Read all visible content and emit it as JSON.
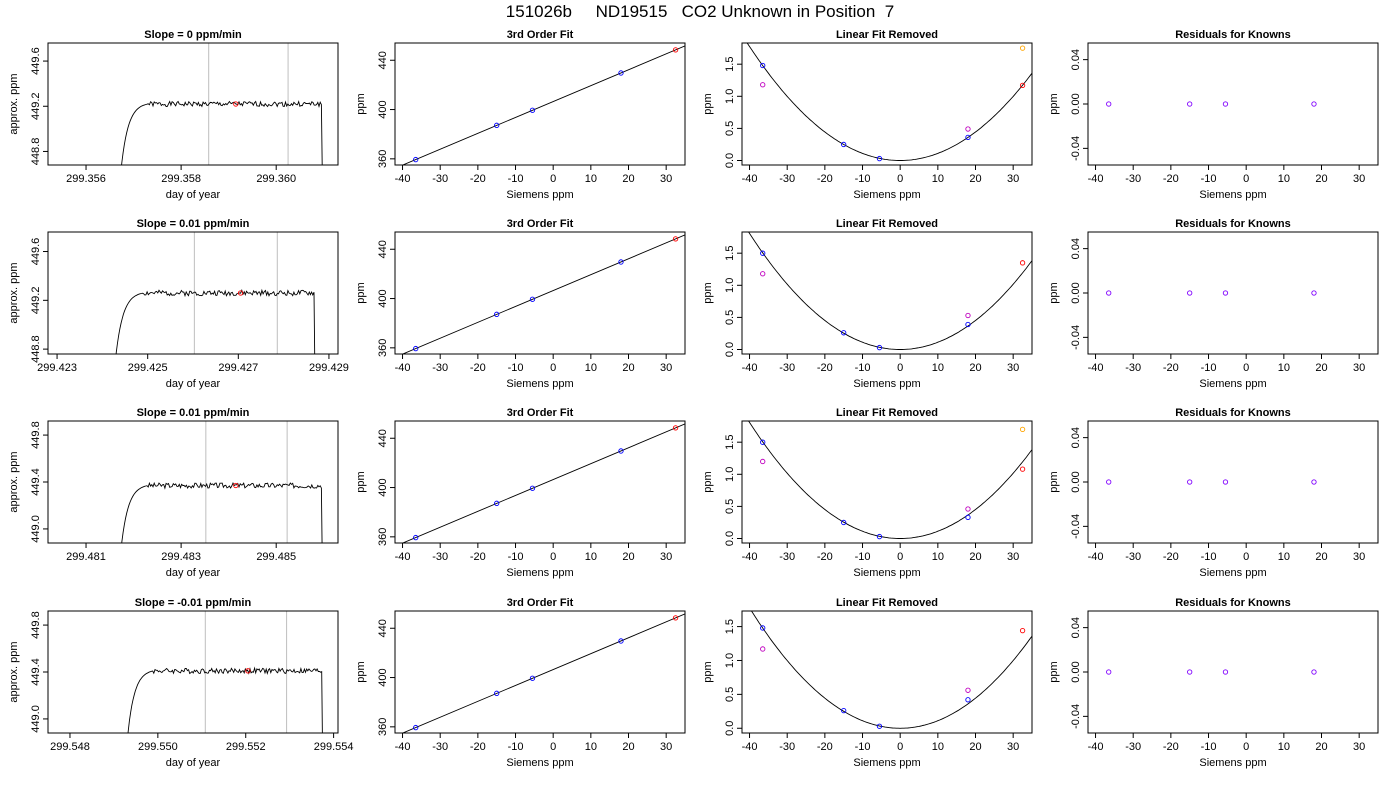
{
  "title": "151026b     ND19515   CO2 Unknown in Position  7",
  "colors": {
    "trace": "#000000",
    "guide_line": "#bebebe",
    "unknown_point": "#ff0000",
    "known_point": "#0000ff",
    "alt_point": "#c000c0",
    "highlight_point": "#ffa500",
    "residual_point": "#8000ff"
  },
  "chart_data": [
    {
      "type": "line",
      "panel": "time-series",
      "row": 1,
      "title": "Slope =  0  ppm/min",
      "xlabel": "day of year",
      "ylabel": "approx. ppm",
      "xlim": [
        299.3552,
        299.3613
      ],
      "ylim": [
        448.68,
        449.76
      ],
      "xticks": [
        299.356,
        299.358,
        299.36
      ],
      "xtick_labels": [
        "299.356",
        "299.358",
        "299.360"
      ],
      "yticks": [
        448.8,
        449.2,
        449.6
      ],
      "ytick_labels": [
        "448.8",
        "449.2",
        "449.6"
      ],
      "trace": {
        "x_start": 299.35668,
        "ramp_end": 299.3573,
        "plateau": 449.22,
        "x_end": 299.36095,
        "drop_to": 448.6,
        "seed": 1
      },
      "guides": [
        299.35858,
        299.36025
      ],
      "marker": {
        "x": 299.35915,
        "y": 449.22
      }
    },
    {
      "type": "line",
      "panel": "fit",
      "row": 1,
      "title": "3rd Order Fit",
      "xlabel": "Siemens ppm",
      "ylabel": "ppm",
      "xlim": [
        -42,
        35
      ],
      "ylim": [
        355,
        454
      ],
      "xticks": [
        -40,
        -30,
        -20,
        -10,
        0,
        10,
        20,
        30
      ],
      "xtick_labels": [
        "-40",
        "-30",
        "-20",
        "-10",
        "0",
        "10",
        "20",
        "30"
      ],
      "yticks": [
        360,
        400,
        440
      ],
      "ytick_labels": [
        "360",
        "400",
        "440"
      ],
      "line": {
        "slope": 1.29,
        "intercept": 406.5
      },
      "known_points": [
        [
          -36.5,
          359.4
        ],
        [
          -15.0,
          387.2
        ],
        [
          -5.5,
          399.4
        ],
        [
          18.0,
          429.7
        ]
      ],
      "unknown_point": [
        32.5,
        448.4
      ]
    },
    {
      "type": "scatter",
      "panel": "linear-fit-removed",
      "row": 1,
      "title": "Linear Fit Removed",
      "xlabel": "Siemens ppm",
      "ylabel": "ppm",
      "xlim": [
        -42,
        35
      ],
      "ylim": [
        -0.07,
        1.83
      ],
      "xticks": [
        -40,
        -30,
        -20,
        -10,
        0,
        10,
        20,
        30
      ],
      "xtick_labels": [
        "-40",
        "-30",
        "-20",
        "-10",
        "0",
        "10",
        "20",
        "30"
      ],
      "yticks": [
        0,
        0.5,
        1,
        1.5
      ],
      "ytick_labels": [
        "0.0",
        "0.5",
        "1.0",
        "1.5"
      ],
      "curve_coef": 0.00111,
      "known_points": [
        [
          -36.5,
          1.48
        ],
        [
          -15.0,
          0.25
        ],
        [
          -5.5,
          0.03
        ],
        [
          18.0,
          0.36
        ]
      ],
      "alt_points": [
        [
          -36.5,
          1.18
        ],
        [
          18.0,
          0.49
        ]
      ],
      "unknown_point": [
        32.5,
        1.17
      ],
      "highlight_point": [
        32.5,
        1.75
      ]
    },
    {
      "type": "scatter",
      "panel": "residuals",
      "row": 1,
      "title": "Residuals for Knowns",
      "xlabel": "Siemens ppm",
      "ylabel": "ppm",
      "xlim": [
        -42,
        35
      ],
      "ylim": [
        -0.055,
        0.055
      ],
      "xticks": [
        -40,
        -30,
        -20,
        -10,
        0,
        10,
        20,
        30
      ],
      "xtick_labels": [
        "-40",
        "-30",
        "-20",
        "-10",
        "0",
        "10",
        "20",
        "30"
      ],
      "yticks": [
        -0.04,
        0,
        0.04
      ],
      "ytick_labels": [
        "-0.04",
        "0.00",
        "0.04"
      ],
      "points": [
        [
          -36.5,
          0
        ],
        [
          -15.0,
          0
        ],
        [
          -5.5,
          0
        ],
        [
          18.0,
          0
        ]
      ]
    },
    {
      "type": "line",
      "panel": "time-series",
      "row": 2,
      "title": "Slope =  0.01  ppm/min",
      "xlabel": "day of year",
      "ylabel": "approx. ppm",
      "xlim": [
        299.4228,
        299.4292
      ],
      "ylim": [
        448.76,
        449.76
      ],
      "xticks": [
        299.423,
        299.425,
        299.427,
        299.429
      ],
      "xtick_labels": [
        "299.423",
        "299.425",
        "299.427",
        "299.429"
      ],
      "yticks": [
        448.8,
        449.2,
        449.6
      ],
      "ytick_labels": [
        "448.8",
        "449.2",
        "449.6"
      ],
      "trace": {
        "x_start": 299.42423,
        "ramp_end": 299.4249,
        "plateau": 449.26,
        "x_end": 299.42867,
        "drop_to": 448.6,
        "seed": 2
      },
      "guides": [
        299.42603,
        299.42786
      ],
      "marker": {
        "x": 299.42705,
        "y": 449.26
      }
    },
    {
      "type": "line",
      "panel": "fit",
      "row": 2,
      "title": "3rd Order Fit",
      "xlabel": "Siemens ppm",
      "ylabel": "ppm",
      "xlim": [
        -42,
        35
      ],
      "ylim": [
        355,
        454
      ],
      "xticks": [
        -40,
        -30,
        -20,
        -10,
        0,
        10,
        20,
        30
      ],
      "xtick_labels": [
        "-40",
        "-30",
        "-20",
        "-10",
        "0",
        "10",
        "20",
        "30"
      ],
      "yticks": [
        360,
        400,
        440
      ],
      "ytick_labels": [
        "360",
        "400",
        "440"
      ],
      "line": {
        "slope": 1.29,
        "intercept": 406.5
      },
      "known_points": [
        [
          -36.5,
          359.4
        ],
        [
          -15.0,
          387.2
        ],
        [
          -5.5,
          399.4
        ],
        [
          18.0,
          429.7
        ]
      ],
      "unknown_point": [
        32.5,
        448.4
      ]
    },
    {
      "type": "scatter",
      "panel": "linear-fit-removed",
      "row": 2,
      "title": "Linear Fit Removed",
      "xlabel": "Siemens ppm",
      "ylabel": "ppm",
      "xlim": [
        -42,
        35
      ],
      "ylim": [
        -0.07,
        1.83
      ],
      "xticks": [
        -40,
        -30,
        -20,
        -10,
        0,
        10,
        20,
        30
      ],
      "xtick_labels": [
        "-40",
        "-30",
        "-20",
        "-10",
        "0",
        "10",
        "20",
        "30"
      ],
      "yticks": [
        0,
        0.5,
        1,
        1.5
      ],
      "ytick_labels": [
        "0.0",
        "0.5",
        "1.0",
        "1.5"
      ],
      "curve_coef": 0.00113,
      "known_points": [
        [
          -36.5,
          1.5
        ],
        [
          -15.0,
          0.26
        ],
        [
          -5.5,
          0.03
        ],
        [
          18.0,
          0.39
        ]
      ],
      "alt_points": [
        [
          -36.5,
          1.18
        ],
        [
          18.0,
          0.53
        ]
      ],
      "unknown_point": [
        32.5,
        1.35
      ],
      "highlight_point": null
    },
    {
      "type": "scatter",
      "panel": "residuals",
      "row": 2,
      "title": "Residuals for Knowns",
      "xlabel": "Siemens ppm",
      "ylabel": "ppm",
      "xlim": [
        -42,
        35
      ],
      "ylim": [
        -0.055,
        0.055
      ],
      "xticks": [
        -40,
        -30,
        -20,
        -10,
        0,
        10,
        20,
        30
      ],
      "xtick_labels": [
        "-40",
        "-30",
        "-20",
        "-10",
        "0",
        "10",
        "20",
        "30"
      ],
      "yticks": [
        -0.04,
        0,
        0.04
      ],
      "ytick_labels": [
        "-0.04",
        "0.00",
        "0.04"
      ],
      "points": [
        [
          -36.5,
          0
        ],
        [
          -15.0,
          0
        ],
        [
          -5.5,
          0
        ],
        [
          18.0,
          0
        ]
      ]
    },
    {
      "type": "line",
      "panel": "time-series",
      "row": 3,
      "title": "Slope =  0.01  ppm/min",
      "xlabel": "day of year",
      "ylabel": "approx. ppm",
      "xlim": [
        299.4802,
        299.4863
      ],
      "ylim": [
        448.88,
        449.92
      ],
      "xticks": [
        299.481,
        299.483,
        299.485
      ],
      "xtick_labels": [
        "299.481",
        "299.483",
        "299.485"
      ],
      "yticks": [
        449.0,
        449.4,
        449.8
      ],
      "ytick_labels": [
        "449.0",
        "449.4",
        "449.8"
      ],
      "trace": {
        "x_start": 299.48168,
        "ramp_end": 299.4823,
        "plateau": 449.37,
        "x_end": 299.48595,
        "drop_to": 448.7,
        "seed": 3
      },
      "guides": [
        299.48352,
        299.48523
      ],
      "marker": {
        "x": 299.48415,
        "y": 449.37
      }
    },
    {
      "type": "line",
      "panel": "fit",
      "row": 3,
      "title": "3rd Order Fit",
      "xlabel": "Siemens ppm",
      "ylabel": "ppm",
      "xlim": [
        -42,
        35
      ],
      "ylim": [
        355,
        454
      ],
      "xticks": [
        -40,
        -30,
        -20,
        -10,
        0,
        10,
        20,
        30
      ],
      "xtick_labels": [
        "-40",
        "-30",
        "-20",
        "-10",
        "0",
        "10",
        "20",
        "30"
      ],
      "yticks": [
        360,
        400,
        440
      ],
      "ytick_labels": [
        "360",
        "400",
        "440"
      ],
      "line": {
        "slope": 1.29,
        "intercept": 406.5
      },
      "known_points": [
        [
          -36.5,
          359.4
        ],
        [
          -15.0,
          387.2
        ],
        [
          -5.5,
          399.4
        ],
        [
          18.0,
          429.7
        ]
      ],
      "unknown_point": [
        32.5,
        448.4
      ]
    },
    {
      "type": "scatter",
      "panel": "linear-fit-removed",
      "row": 3,
      "title": "Linear Fit Removed",
      "xlabel": "Siemens ppm",
      "ylabel": "ppm",
      "xlim": [
        -42,
        35
      ],
      "ylim": [
        -0.07,
        1.83
      ],
      "xticks": [
        -40,
        -30,
        -20,
        -10,
        0,
        10,
        20,
        30
      ],
      "xtick_labels": [
        "-40",
        "-30",
        "-20",
        "-10",
        "0",
        "10",
        "20",
        "30"
      ],
      "yticks": [
        0,
        0.5,
        1,
        1.5
      ],
      "ytick_labels": [
        "0.0",
        "0.5",
        "1.0",
        "1.5"
      ],
      "curve_coef": 0.00113,
      "known_points": [
        [
          -36.5,
          1.5
        ],
        [
          -15.0,
          0.25
        ],
        [
          -5.5,
          0.03
        ],
        [
          18.0,
          0.33
        ]
      ],
      "alt_points": [
        [
          -36.5,
          1.2
        ],
        [
          18.0,
          0.46
        ]
      ],
      "unknown_point": [
        32.5,
        1.08
      ],
      "highlight_point": [
        32.5,
        1.7
      ]
    },
    {
      "type": "scatter",
      "panel": "residuals",
      "row": 3,
      "title": "Residuals for Knowns",
      "xlabel": "Siemens ppm",
      "ylabel": "ppm",
      "xlim": [
        -42,
        35
      ],
      "ylim": [
        -0.055,
        0.055
      ],
      "xticks": [
        -40,
        -30,
        -20,
        -10,
        0,
        10,
        20,
        30
      ],
      "xtick_labels": [
        "-40",
        "-30",
        "-20",
        "-10",
        "0",
        "10",
        "20",
        "30"
      ],
      "yticks": [
        -0.04,
        0,
        0.04
      ],
      "ytick_labels": [
        "-0.04",
        "0.00",
        "0.04"
      ],
      "points": [
        [
          -36.5,
          0
        ],
        [
          -15.0,
          0
        ],
        [
          -5.5,
          0
        ],
        [
          18.0,
          0
        ]
      ]
    },
    {
      "type": "line",
      "panel": "time-series",
      "row": 4,
      "title": "Slope =  -0.01  ppm/min",
      "xlabel": "day of year",
      "ylabel": "approx. ppm",
      "xlim": [
        299.5475,
        299.5541
      ],
      "ylim": [
        448.88,
        449.92
      ],
      "xticks": [
        299.548,
        299.55,
        299.552,
        299.554
      ],
      "xtick_labels": [
        "299.548",
        "299.550",
        "299.552",
        "299.554"
      ],
      "yticks": [
        449.0,
        449.4,
        449.8
      ],
      "ytick_labels": [
        "449.0",
        "449.4",
        "449.8"
      ],
      "trace": {
        "x_start": 299.54925,
        "ramp_end": 299.5499,
        "plateau": 449.41,
        "x_end": 299.55373,
        "drop_to": 448.7,
        "seed": 4
      },
      "guides": [
        299.55108,
        299.55293
      ],
      "marker": {
        "x": 299.55205,
        "y": 449.41
      }
    },
    {
      "type": "line",
      "panel": "fit",
      "row": 4,
      "title": "3rd Order Fit",
      "xlabel": "Siemens ppm",
      "ylabel": "ppm",
      "xlim": [
        -42,
        35
      ],
      "ylim": [
        355,
        454
      ],
      "xticks": [
        -40,
        -30,
        -20,
        -10,
        0,
        10,
        20,
        30
      ],
      "xtick_labels": [
        "-40",
        "-30",
        "-20",
        "-10",
        "0",
        "10",
        "20",
        "30"
      ],
      "yticks": [
        360,
        400,
        440
      ],
      "ytick_labels": [
        "360",
        "400",
        "440"
      ],
      "line": {
        "slope": 1.29,
        "intercept": 406.5
      },
      "known_points": [
        [
          -36.5,
          359.4
        ],
        [
          -15.0,
          387.2
        ],
        [
          -5.5,
          399.4
        ],
        [
          18.0,
          429.7
        ]
      ],
      "unknown_point": [
        32.5,
        448.4
      ]
    },
    {
      "type": "scatter",
      "panel": "linear-fit-removed",
      "row": 4,
      "title": "Linear Fit Removed",
      "xlabel": "Siemens ppm",
      "ylabel": "ppm",
      "xlim": [
        -42,
        35
      ],
      "ylim": [
        -0.07,
        1.73
      ],
      "xticks": [
        -40,
        -30,
        -20,
        -10,
        0,
        10,
        20,
        30
      ],
      "xtick_labels": [
        "-40",
        "-30",
        "-20",
        "-10",
        "0",
        "10",
        "20",
        "30"
      ],
      "yticks": [
        0,
        0.5,
        1,
        1.5
      ],
      "ytick_labels": [
        "0.0",
        "0.5",
        "1.0",
        "1.5"
      ],
      "curve_coef": 0.00111,
      "known_points": [
        [
          -36.5,
          1.48
        ],
        [
          -15.0,
          0.26
        ],
        [
          -5.5,
          0.03
        ],
        [
          18.0,
          0.42
        ]
      ],
      "alt_points": [
        [
          -36.5,
          1.17
        ],
        [
          18.0,
          0.56
        ]
      ],
      "unknown_point": [
        32.5,
        1.44
      ],
      "highlight_point": null
    },
    {
      "type": "scatter",
      "panel": "residuals",
      "row": 4,
      "title": "Residuals for Knowns",
      "xlabel": "Siemens ppm",
      "ylabel": "ppm",
      "xlim": [
        -42,
        35
      ],
      "ylim": [
        -0.055,
        0.055
      ],
      "xticks": [
        -40,
        -30,
        -20,
        -10,
        0,
        10,
        20,
        30
      ],
      "xtick_labels": [
        "-40",
        "-30",
        "-20",
        "-10",
        "0",
        "10",
        "20",
        "30"
      ],
      "yticks": [
        -0.04,
        0,
        0.04
      ],
      "ytick_labels": [
        "-0.04",
        "0.00",
        "0.04"
      ],
      "points": [
        [
          -36.5,
          0
        ],
        [
          -15.0,
          0
        ],
        [
          -5.5,
          0
        ],
        [
          18.0,
          0
        ]
      ]
    }
  ]
}
